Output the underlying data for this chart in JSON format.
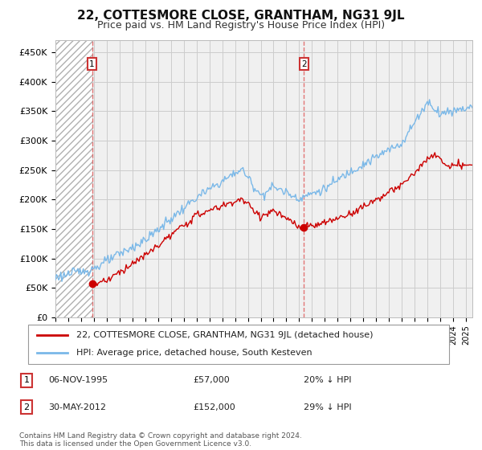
{
  "title": "22, COTTESMORE CLOSE, GRANTHAM, NG31 9JL",
  "subtitle": "Price paid vs. HM Land Registry's House Price Index (HPI)",
  "title_fontsize": 11,
  "subtitle_fontsize": 9,
  "ylabel_ticks": [
    "£0",
    "£50K",
    "£100K",
    "£150K",
    "£200K",
    "£250K",
    "£300K",
    "£350K",
    "£400K",
    "£450K"
  ],
  "ytick_values": [
    0,
    50000,
    100000,
    150000,
    200000,
    250000,
    300000,
    350000,
    400000,
    450000
  ],
  "ylim": [
    0,
    470000
  ],
  "xlim_start": 1993.0,
  "xlim_end": 2025.5,
  "sale1_x": 1995.85,
  "sale1_y": 57000,
  "sale2_x": 2012.38,
  "sale2_y": 152000,
  "hpi_color": "#7ab8e8",
  "property_color": "#cc0000",
  "marker_color": "#cc0000",
  "dashed_vline_color": "#e06060",
  "legend_label1": "22, COTTESMORE CLOSE, GRANTHAM, NG31 9JL (detached house)",
  "legend_label2": "HPI: Average price, detached house, South Kesteven",
  "note1_date": "06-NOV-1995",
  "note1_price": "£57,000",
  "note1_hpi": "20% ↓ HPI",
  "note2_date": "30-MAY-2012",
  "note2_price": "£152,000",
  "note2_hpi": "29% ↓ HPI",
  "footer": "Contains HM Land Registry data © Crown copyright and database right 2024.\nThis data is licensed under the Open Government Licence v3.0.",
  "background_color": "#ffffff",
  "plot_bg_color": "#f0f0f0"
}
